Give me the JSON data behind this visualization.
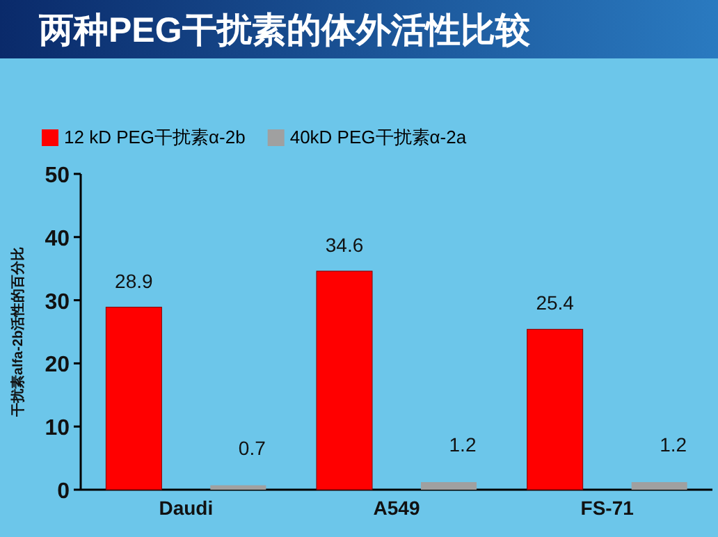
{
  "chart_data": {
    "type": "bar",
    "title": "两种PEG干扰素的体外活性比较",
    "ylabel": "干扰素alfa-2b活性的百分比",
    "categories": [
      "Daudi",
      "A549",
      "FS-71"
    ],
    "series": [
      {
        "name": "12 kD PEG干扰素α-2b",
        "color": "#ff0000",
        "values": [
          28.9,
          34.6,
          25.4
        ]
      },
      {
        "name": "40kD PEG干扰素α-2a",
        "color": "#a0a0a0",
        "values": [
          0.7,
          1.2,
          1.2
        ]
      }
    ],
    "ylim": [
      0,
      50
    ],
    "yticks": [
      0,
      10,
      20,
      30,
      40,
      50
    ],
    "data_labels": true,
    "legend": "top left",
    "grid": false
  }
}
